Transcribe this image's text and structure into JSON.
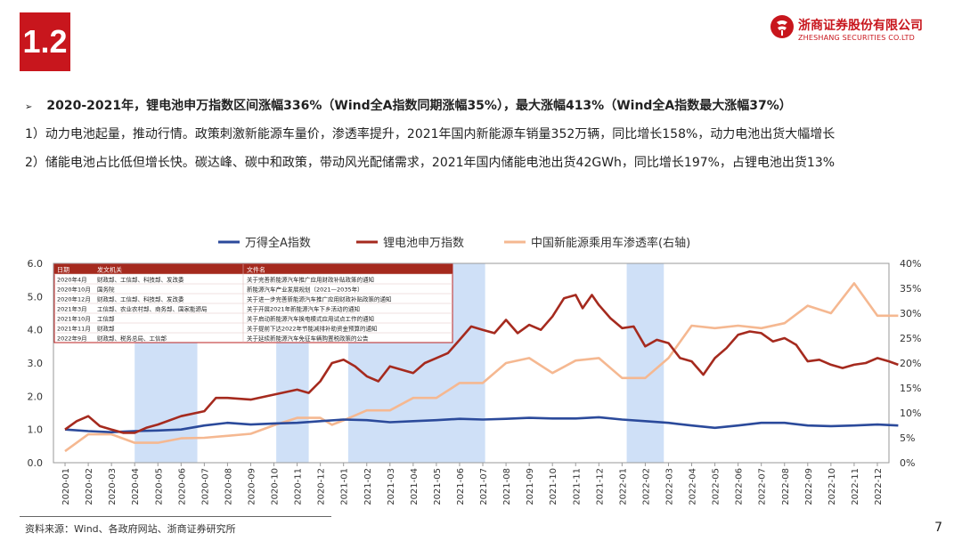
{
  "slide": {
    "section_number": "1.2",
    "page_number": "7",
    "logo": {
      "cn": "浙商证券股份有限公司",
      "en": "ZHESHANG SECURITIES CO.LTD"
    },
    "headline": "2020-2021年，锂电池申万指数区间涨幅336%（Wind全A指数同期涨幅35%），最大涨幅413%（Wind全A指数最大涨幅37%）",
    "point1": "1）动力电池起量，推动行情。政策刺激新能源车量价，渗透率提升，2021年国内新能源车销量352万辆，同比增长158%，动力电池出货大幅增长",
    "point2": "2）储能电池占比低但增长快。碳达峰、碳中和政策，带动风光配储需求，2021年国内储能电池出货42GWh，同比增长197%，占锂电池出货13%",
    "source": "资料来源：Wind、各政府网站、浙商证券研究所"
  },
  "colors": {
    "brand_red": "#c8161d",
    "wind_a": "#2b4a9b",
    "lithium": "#a52a1e",
    "penetration": "#f5b891",
    "highlight": "#cfe0f7"
  },
  "chart_data": {
    "type": "line",
    "legend": [
      "万得全A指数",
      "锂电池申万指数",
      "中国新能源乘用车渗透率(右轴)"
    ],
    "x_ticks": [
      "2020-01",
      "2020-02",
      "2020-03",
      "2020-04",
      "2020-05",
      "2020-06",
      "2020-07",
      "2020-08",
      "2020-09",
      "2020-10",
      "2020-11",
      "2020-12",
      "2021-01",
      "2021-02",
      "2021-03",
      "2021-04",
      "2021-05",
      "2021-06",
      "2021-07",
      "2021-08",
      "2021-09",
      "2021-10",
      "2021-11",
      "2021-12",
      "2022-01",
      "2022-02",
      "2022-03",
      "2022-04",
      "2022-05",
      "2022-06",
      "2022-07",
      "2022-08",
      "2022-09",
      "2022-10",
      "2022-11",
      "2022-12"
    ],
    "y_left": {
      "min": 0,
      "max": 6,
      "ticks": [
        "0.0",
        "1.0",
        "2.0",
        "3.0",
        "4.0",
        "5.0",
        "6.0"
      ]
    },
    "y_right": {
      "min": 0,
      "max": 40,
      "ticks": [
        "0%",
        "5%",
        "10%",
        "15%",
        "20%",
        "25%",
        "30%",
        "35%",
        "40%"
      ]
    },
    "highlight_bands": [
      {
        "from": 3.5,
        "to": 6.2
      },
      {
        "from": 9.6,
        "to": 11.0
      },
      {
        "from": 12.7,
        "to": 18.6
      },
      {
        "from": 24.7,
        "to": 26.3
      }
    ],
    "series": [
      {
        "name": "万得全A指数",
        "axis": "left",
        "points": [
          [
            0,
            1.0
          ],
          [
            1,
            0.95
          ],
          [
            2,
            0.92
          ],
          [
            3,
            0.95
          ],
          [
            4,
            0.97
          ],
          [
            5,
            1.0
          ],
          [
            6,
            1.12
          ],
          [
            7,
            1.2
          ],
          [
            8,
            1.15
          ],
          [
            9,
            1.18
          ],
          [
            10,
            1.2
          ],
          [
            11,
            1.25
          ],
          [
            12,
            1.3
          ],
          [
            13,
            1.28
          ],
          [
            14,
            1.22
          ],
          [
            15,
            1.25
          ],
          [
            16,
            1.28
          ],
          [
            17,
            1.32
          ],
          [
            18,
            1.3
          ],
          [
            19,
            1.32
          ],
          [
            20,
            1.35
          ],
          [
            21,
            1.33
          ],
          [
            22,
            1.33
          ],
          [
            23,
            1.37
          ],
          [
            24,
            1.3
          ],
          [
            25,
            1.25
          ],
          [
            26,
            1.2
          ],
          [
            27,
            1.12
          ],
          [
            28,
            1.05
          ],
          [
            29,
            1.12
          ],
          [
            30,
            1.2
          ],
          [
            31,
            1.2
          ],
          [
            32,
            1.12
          ],
          [
            33,
            1.1
          ],
          [
            34,
            1.12
          ],
          [
            35,
            1.15
          ],
          [
            35.9,
            1.12
          ]
        ]
      },
      {
        "name": "锂电池申万指数",
        "axis": "left",
        "points": [
          [
            0,
            1.0
          ],
          [
            0.5,
            1.25
          ],
          [
            1,
            1.4
          ],
          [
            1.5,
            1.1
          ],
          [
            2,
            1.0
          ],
          [
            2.5,
            0.9
          ],
          [
            3,
            0.9
          ],
          [
            3.5,
            1.05
          ],
          [
            4,
            1.15
          ],
          [
            5,
            1.4
          ],
          [
            6,
            1.55
          ],
          [
            6.5,
            1.95
          ],
          [
            7,
            1.95
          ],
          [
            8,
            1.9
          ],
          [
            9,
            2.05
          ],
          [
            10,
            2.2
          ],
          [
            10.5,
            2.1
          ],
          [
            11,
            2.45
          ],
          [
            11.5,
            3.0
          ],
          [
            12,
            3.1
          ],
          [
            12.5,
            2.9
          ],
          [
            13,
            2.6
          ],
          [
            13.5,
            2.45
          ],
          [
            14,
            2.9
          ],
          [
            15,
            2.7
          ],
          [
            15.5,
            3.0
          ],
          [
            16,
            3.15
          ],
          [
            16.5,
            3.3
          ],
          [
            17,
            3.7
          ],
          [
            17.5,
            4.1
          ],
          [
            18,
            4.0
          ],
          [
            18.5,
            3.9
          ],
          [
            19,
            4.3
          ],
          [
            19.5,
            3.9
          ],
          [
            20,
            4.15
          ],
          [
            20.5,
            4.0
          ],
          [
            21,
            4.4
          ],
          [
            21.5,
            4.95
          ],
          [
            22,
            5.05
          ],
          [
            22.3,
            4.65
          ],
          [
            22.7,
            5.05
          ],
          [
            23,
            4.75
          ],
          [
            23.5,
            4.35
          ],
          [
            24,
            4.05
          ],
          [
            24.5,
            4.1
          ],
          [
            25,
            3.5
          ],
          [
            25.5,
            3.7
          ],
          [
            26,
            3.6
          ],
          [
            26.5,
            3.15
          ],
          [
            27,
            3.05
          ],
          [
            27.5,
            2.65
          ],
          [
            28,
            3.15
          ],
          [
            28.5,
            3.45
          ],
          [
            29,
            3.85
          ],
          [
            29.5,
            3.95
          ],
          [
            30,
            3.9
          ],
          [
            30.5,
            3.65
          ],
          [
            31,
            3.75
          ],
          [
            31.5,
            3.55
          ],
          [
            32,
            3.05
          ],
          [
            32.5,
            3.1
          ],
          [
            33,
            2.95
          ],
          [
            33.5,
            2.85
          ],
          [
            34,
            2.95
          ],
          [
            34.5,
            3.0
          ],
          [
            35,
            3.15
          ],
          [
            35.5,
            3.05
          ],
          [
            35.9,
            2.95
          ]
        ]
      },
      {
        "name": "中国新能源乘用车渗透率(右轴)",
        "axis": "right",
        "points": [
          [
            0,
            2.3
          ],
          [
            1,
            5.7
          ],
          [
            2,
            5.7
          ],
          [
            3,
            4.0
          ],
          [
            4,
            4.0
          ],
          [
            5,
            4.9
          ],
          [
            6,
            5.0
          ],
          [
            7,
            5.4
          ],
          [
            8,
            5.8
          ],
          [
            9,
            7.5
          ],
          [
            10,
            9.0
          ],
          [
            11,
            9.0
          ],
          [
            11.5,
            7.6
          ],
          [
            12,
            8.5
          ],
          [
            13,
            10.5
          ],
          [
            14,
            10.5
          ],
          [
            15,
            13.0
          ],
          [
            16,
            13.0
          ],
          [
            17,
            16.0
          ],
          [
            18,
            16.0
          ],
          [
            19,
            20.0
          ],
          [
            20,
            21.0
          ],
          [
            21,
            18.0
          ],
          [
            22,
            20.5
          ],
          [
            23,
            21.0
          ],
          [
            24,
            17.0
          ],
          [
            25,
            17.0
          ],
          [
            26,
            21.0
          ],
          [
            27,
            27.5
          ],
          [
            28,
            27.0
          ],
          [
            29,
            27.5
          ],
          [
            30,
            27.0
          ],
          [
            31,
            28.0
          ],
          [
            32,
            31.5
          ],
          [
            33,
            30.0
          ],
          [
            34,
            36.0
          ],
          [
            35,
            29.5
          ],
          [
            35.9,
            29.5
          ]
        ]
      }
    ],
    "policy_table": {
      "headers": [
        "日期",
        "发文机关",
        "文件名"
      ],
      "rows": [
        [
          "2020年4月",
          "财政部、工信部、科技部、发改委",
          "关于完善新能源汽车推广应用财政补贴政策的通知"
        ],
        [
          "2020年10月",
          "国务院",
          "新能源汽车产业发展规划（2021—2035年）"
        ],
        [
          "2020年12月",
          "财政部、工信部、科技部、发改委",
          "关于进一步完善新能源汽车推广应用财政补贴政策的通知"
        ],
        [
          "2021年3月",
          "工信部、农业农村部、商务部、国家能源局",
          "关于开展2021年新能源汽车下乡活动的通知"
        ],
        [
          "2021年10月",
          "工信部",
          "关于启动新能源汽车换电模式应用试点工作的通知"
        ],
        [
          "2021年11月",
          "财政部",
          "关于提前下达2022年节能减排补助资金预算的通知"
        ],
        [
          "2022年9月",
          "财政部、税务总局、工信部",
          "关于延续新能源汽车免征车辆购置税政策的公告"
        ]
      ]
    }
  }
}
